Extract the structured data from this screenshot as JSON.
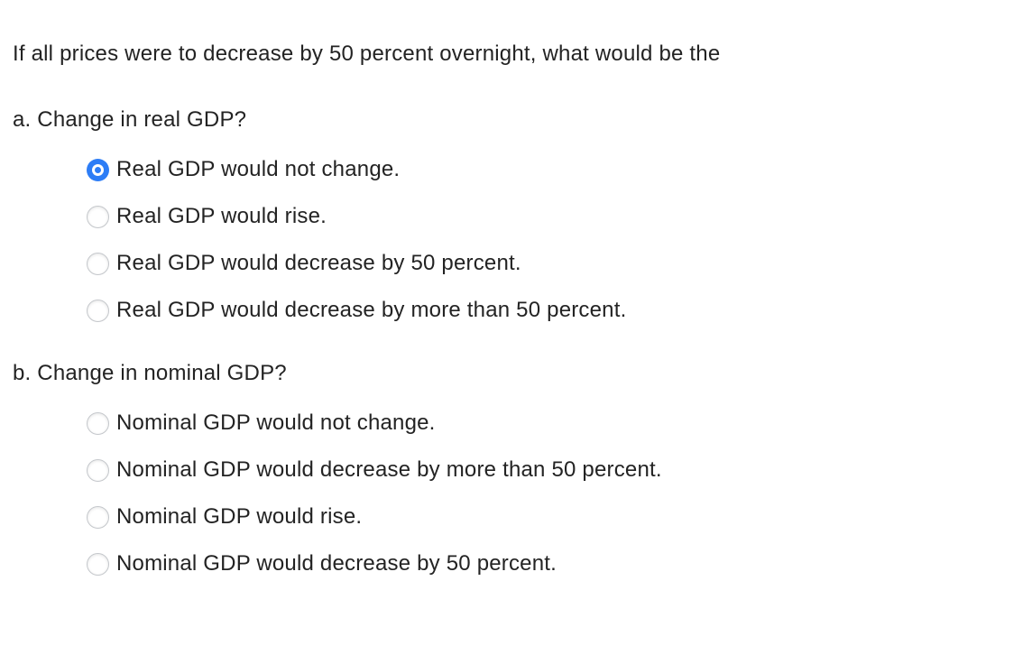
{
  "colors": {
    "accent_blue": "#2d7df6",
    "text": "#232323",
    "radio_border": "#c4c7cb",
    "background": "#ffffff"
  },
  "question": {
    "prompt": "If all prices were to decrease by 50 percent overnight, what would be the"
  },
  "part_a": {
    "heading": "a. Change in real GDP?",
    "options": [
      {
        "label": "Real GDP would not change.",
        "selected": true
      },
      {
        "label": "Real GDP would rise.",
        "selected": false
      },
      {
        "label": "Real GDP would decrease by 50 percent.",
        "selected": false
      },
      {
        "label": "Real GDP would decrease by more than 50 percent.",
        "selected": false
      }
    ]
  },
  "part_b": {
    "heading": "b. Change in nominal GDP?",
    "options": [
      {
        "label": "Nominal GDP would not change.",
        "selected": false
      },
      {
        "label": "Nominal GDP would decrease by more than 50 percent.",
        "selected": false
      },
      {
        "label": "Nominal GDP would rise.",
        "selected": false
      },
      {
        "label": "Nominal GDP would decrease by 50 percent.",
        "selected": false
      }
    ]
  }
}
